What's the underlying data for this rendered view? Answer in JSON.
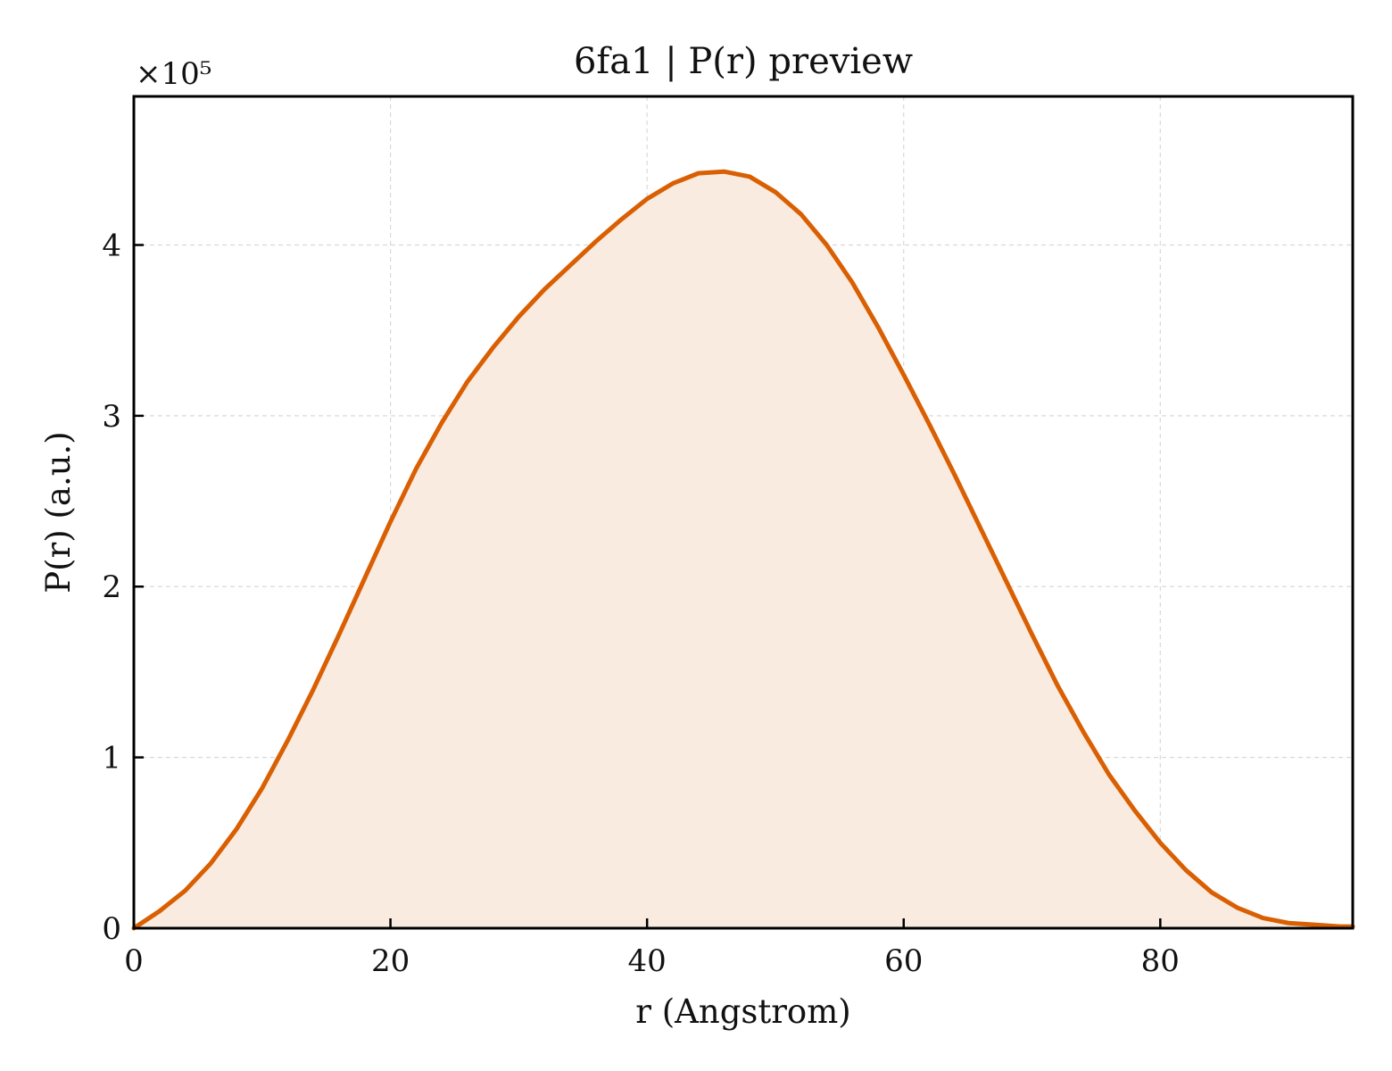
{
  "chart_data": {
    "type": "area",
    "title": "6fa1 | P(r) preview",
    "xlabel": "r (Angstrom)",
    "ylabel": "P(r) (a.u.)",
    "y_multiplier": "×10⁵",
    "xlim": [
      0,
      95
    ],
    "ylim": [
      0,
      4.87
    ],
    "xticks": [
      0,
      20,
      40,
      60,
      80
    ],
    "yticks": [
      0,
      1,
      2,
      3,
      4
    ],
    "grid": true,
    "legend": "none",
    "series": [
      {
        "color": "#d95f02",
        "fill_color": "#f9ebe0",
        "x": [
          0,
          2,
          4,
          6,
          8,
          10,
          12,
          14,
          16,
          18,
          20,
          22,
          24,
          26,
          28,
          30,
          32,
          34,
          36,
          38,
          40,
          42,
          44,
          46,
          48,
          50,
          52,
          54,
          56,
          58,
          60,
          62,
          64,
          66,
          68,
          70,
          72,
          74,
          76,
          78,
          80,
          82,
          84,
          86,
          88,
          90,
          92,
          94,
          95
        ],
        "y": [
          0,
          0.1,
          0.22,
          0.38,
          0.58,
          0.82,
          1.1,
          1.4,
          1.72,
          2.05,
          2.38,
          2.69,
          2.96,
          3.2,
          3.4,
          3.58,
          3.74,
          3.88,
          4.02,
          4.15,
          4.27,
          4.36,
          4.42,
          4.43,
          4.4,
          4.31,
          4.18,
          4.0,
          3.78,
          3.52,
          3.24,
          2.95,
          2.65,
          2.34,
          2.03,
          1.72,
          1.42,
          1.15,
          0.9,
          0.69,
          0.5,
          0.34,
          0.21,
          0.12,
          0.06,
          0.03,
          0.02,
          0.01,
          0.01
        ]
      }
    ]
  }
}
